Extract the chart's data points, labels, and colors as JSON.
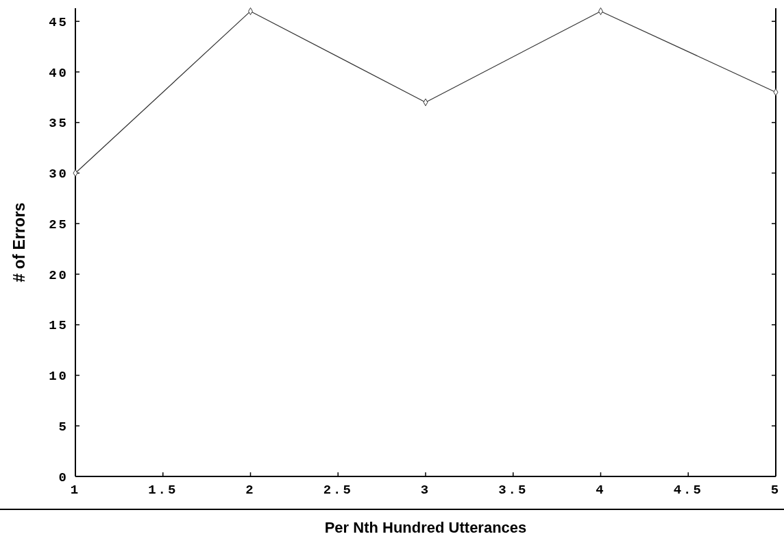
{
  "chart_data": {
    "type": "line",
    "xlabel": "Per Nth Hundred Utterances",
    "ylabel": "# of Errors",
    "x": [
      1,
      2,
      3,
      4,
      5
    ],
    "series": [
      {
        "color": "#333333",
        "values": [
          30,
          46,
          37,
          46,
          38
        ]
      }
    ],
    "xlim": [
      1,
      5
    ],
    "xticks": [
      1,
      1.5,
      2,
      2.5,
      3,
      3.5,
      4,
      4.5,
      5
    ],
    "ylim": [
      0,
      46.3
    ],
    "yticks": [
      0,
      5,
      10,
      15,
      20,
      25,
      30,
      35,
      40,
      45
    ],
    "grid": false,
    "marker": "diamond",
    "line_style": "solid"
  }
}
